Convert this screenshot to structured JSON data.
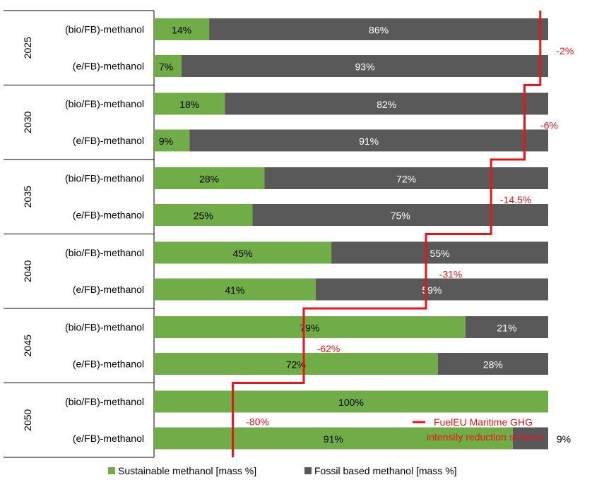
{
  "chart_data": {
    "type": "bar",
    "orientation": "horizontal",
    "stacked": true,
    "groups": [
      {
        "label": "2025",
        "reduction": "-2%",
        "bars": [
          {
            "label": "(bio/FB)-methanol",
            "sustainable": 14,
            "fossil": 86,
            "sustainable_label": "14%",
            "fossil_label": "86%"
          },
          {
            "label": "(e/FB)-methanol",
            "sustainable": 7,
            "fossil": 93,
            "sustainable_label": "7%",
            "fossil_label": "93%"
          }
        ]
      },
      {
        "label": "2030",
        "reduction": "-6%",
        "bars": [
          {
            "label": "(bio/FB)-methanol",
            "sustainable": 18,
            "fossil": 82,
            "sustainable_label": "18%",
            "fossil_label": "82%"
          },
          {
            "label": "(e/FB)-methanol",
            "sustainable": 9,
            "fossil": 91,
            "sustainable_label": "9%",
            "fossil_label": "91%"
          }
        ]
      },
      {
        "label": "2035",
        "reduction": "-14.5%",
        "bars": [
          {
            "label": "(bio/FB)-methanol",
            "sustainable": 28,
            "fossil": 72,
            "sustainable_label": "28%",
            "fossil_label": "72%"
          },
          {
            "label": "(e/FB)-methanol",
            "sustainable": 25,
            "fossil": 75,
            "sustainable_label": "25%",
            "fossil_label": "75%"
          }
        ]
      },
      {
        "label": "2040",
        "reduction": "-31%",
        "bars": [
          {
            "label": "(bio/FB)-methanol",
            "sustainable": 45,
            "fossil": 55,
            "sustainable_label": "45%",
            "fossil_label": "55%"
          },
          {
            "label": "(e/FB)-methanol",
            "sustainable": 41,
            "fossil": 59,
            "sustainable_label": "41%",
            "fossil_label": "59%"
          }
        ]
      },
      {
        "label": "2045",
        "reduction": "-62%",
        "bars": [
          {
            "label": "(bio/FB)-methanol",
            "sustainable": 79,
            "fossil": 21,
            "sustainable_label": "79%",
            "fossil_label": "21%"
          },
          {
            "label": "(e/FB)-methanol",
            "sustainable": 72,
            "fossil": 28,
            "sustainable_label": "72%",
            "fossil_label": "28%"
          }
        ]
      },
      {
        "label": "2050",
        "reduction": "-80%",
        "bars": [
          {
            "label": "(bio/FB)-methanol",
            "sustainable": 100,
            "fossil": 0,
            "sustainable_label": "100%",
            "fossil_label": ""
          },
          {
            "label": "(e/FB)-methanol",
            "sustainable": 91,
            "fossil": 9,
            "sustainable_label": "91%",
            "fossil_label": "9%"
          }
        ]
      }
    ],
    "series": [
      {
        "name": "Sustainable methanol [mass %]",
        "color": "#70ad47"
      },
      {
        "name": "Fossil based methanol [mass %]",
        "color": "#595959"
      }
    ],
    "reduction_line": {
      "label_line1": "FuelEU Maritime GHG",
      "label_line2": "intensity reduction scheme",
      "color": "#e8131b",
      "levels": [
        98,
        94,
        85.5,
        69,
        38,
        20
      ]
    },
    "xlim": [
      0,
      100
    ],
    "legend_position": "bottom"
  }
}
